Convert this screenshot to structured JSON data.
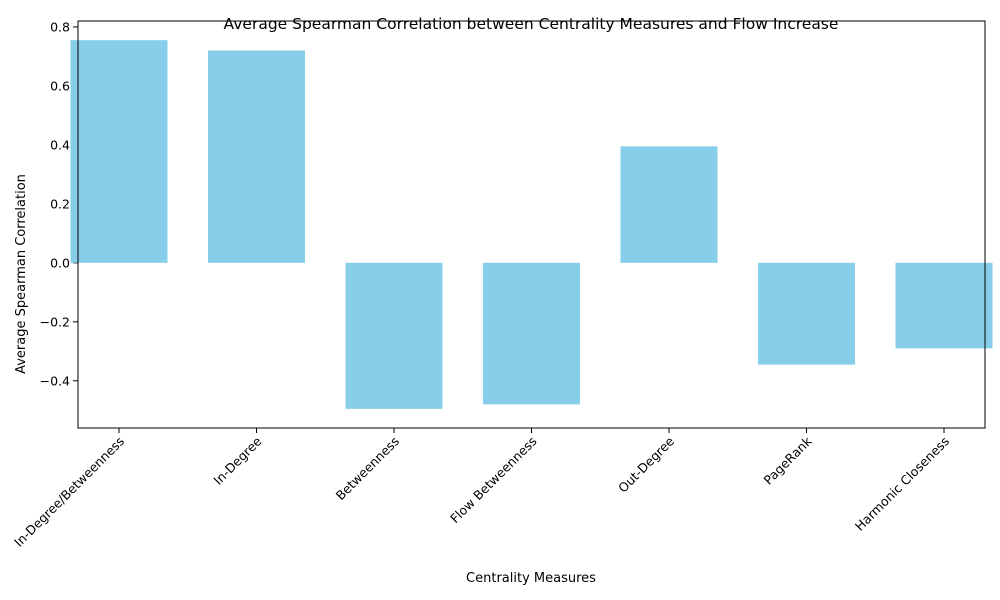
{
  "chart_data": {
    "type": "bar",
    "title": "Average Spearman Correlation between Centrality Measures and Flow Increase",
    "xlabel": "Centrality Measures",
    "ylabel": "Average Spearman Correlation",
    "categories": [
      "In-Degree/Betweenness",
      "In-Degree",
      "Betweenness",
      "Flow Betweenness",
      "Out-Degree",
      "PageRank",
      "Harmonic Closeness"
    ],
    "values": [
      0.755,
      0.72,
      -0.495,
      -0.48,
      0.395,
      -0.345,
      -0.29
    ],
    "ylim": [
      -0.56,
      0.82
    ],
    "yticks": [
      -0.4,
      -0.2,
      0.0,
      0.2,
      0.4,
      0.6,
      0.8
    ],
    "ytick_labels": [
      "−0.4",
      "−0.2",
      "0.0",
      "0.2",
      "0.4",
      "0.6",
      "0.8"
    ],
    "bar_color": "#87CEEB",
    "grid": false,
    "legend": "none"
  }
}
